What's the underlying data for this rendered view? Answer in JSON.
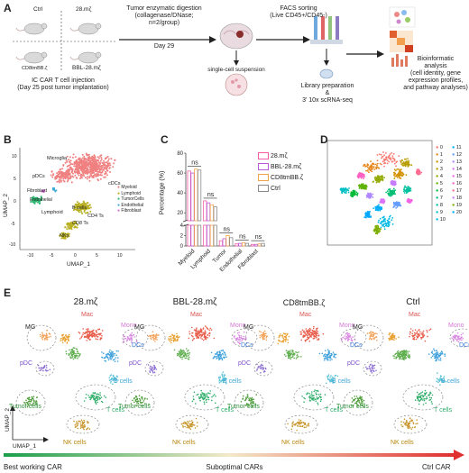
{
  "panelA": {
    "letter": "A",
    "groups": [
      "Ctrl",
      "28.mζ",
      "CD8tmBB.ζ",
      "BBL-28.mζ"
    ],
    "injection_line1": "IC CAR T cell injection",
    "injection_line2": "(Day 25 post tumor implantation)",
    "day_label": "Day 29",
    "digestion_line1": "Tumor enzymatic digestion",
    "digestion_line2": "(collagenase/DNase;",
    "digestion_line3": "n=2/group)",
    "suspension": "single-cell suspension",
    "facs_line1": "FACS sorting",
    "facs_line2": "(Live CD45+/CD45-)",
    "library_line1": "Library preparation",
    "library_line2": "&",
    "library_line3": "3' 10x scRNA-seq",
    "bioinf_line1": "Bioinformatic",
    "bioinf_line2": "analysis",
    "bioinf_line3": "(cell identity, gene",
    "bioinf_line4": "expression profiles,",
    "bioinf_line5": "and pathway analyses)"
  },
  "panelB": {
    "letter": "B",
    "ylabel": "UMAP_2",
    "xlabel": "UMAP_1",
    "xticks": [
      "-10",
      "-5",
      "0",
      "5",
      "10"
    ],
    "yticks": [
      "10",
      "5",
      "0",
      "-5",
      "-10"
    ],
    "labels": [
      "Microglia",
      "pDCs",
      "cDCs",
      "B cells",
      "Fibroblast",
      "Endothelial",
      "CD4 Ts",
      "Lymphoid",
      "CD8 Ts",
      "NKs"
    ],
    "legend": [
      {
        "name": "Myeloid",
        "color": "#f08080"
      },
      {
        "name": "Lymphoid",
        "color": "#b8b020"
      },
      {
        "name": "TumorCells",
        "color": "#2eb872"
      },
      {
        "name": "Endothelial",
        "color": "#3fa7d6"
      },
      {
        "name": "Fibroblast",
        "color": "#d966d6"
      }
    ]
  },
  "panelC": {
    "letter": "C",
    "chart_data": {
      "type": "bar",
      "ylabel": "Percentage (%)",
      "categories": [
        "Myeloid",
        "Lymphoid",
        "Tumor",
        "Endothelial",
        "Fibroblast"
      ],
      "yticks_upper": [
        "20",
        "40",
        "60",
        "80"
      ],
      "yticks_lower": [
        "0",
        "2",
        "4"
      ],
      "significance": [
        "ns",
        "ns",
        "ns",
        "ns",
        "ns"
      ],
      "series": [
        {
          "name": "28.mζ",
          "color": "#f35ea7",
          "values": [
            62,
            32,
            1.0,
            0.4,
            0.3
          ]
        },
        {
          "name": "BBL-28.mζ",
          "color": "#b65ad8",
          "values": [
            60,
            30,
            1.4,
            0.5,
            0.3
          ]
        },
        {
          "name": "CD8tmBB.ζ",
          "color": "#f2a24a",
          "values": [
            64,
            28,
            2.0,
            0.6,
            0.4
          ]
        },
        {
          "name": "Ctrl",
          "color": "#8a8a8a",
          "values": [
            63,
            26,
            1.6,
            0.5,
            0.5
          ]
        }
      ]
    }
  },
  "panelD": {
    "letter": "D",
    "clusters": [
      "0",
      "1",
      "2",
      "3",
      "4",
      "5",
      "6",
      "7",
      "8",
      "9",
      "10",
      "11",
      "12",
      "13",
      "14",
      "15",
      "16",
      "17",
      "18",
      "19",
      "20"
    ],
    "colors": [
      "#f8766d",
      "#e7861b",
      "#d39200",
      "#b79f00",
      "#93aa00",
      "#5eb300",
      "#00ba38",
      "#00bf74",
      "#00c19f",
      "#00bfc4",
      "#00b9e3",
      "#00adfa",
      "#619cff",
      "#ae87ff",
      "#db72fb",
      "#f564e3",
      "#ff61c3",
      "#ff6c91",
      "#c77cff",
      "#7cae00",
      "#00a9ff"
    ]
  },
  "panelE": {
    "letter": "E",
    "titles": [
      "28.mζ",
      "BBL-28.mζ",
      "CD8tmBB.ζ",
      "Ctrl"
    ],
    "labels": {
      "mg": "MG",
      "mac": "Mac",
      "mono": "Mono",
      "pdc": "pDC",
      "dcs": "DCs",
      "b": "B cells",
      "tumor": "Tumor cells",
      "t": "T cells",
      "nk": "NK cells"
    },
    "ylabel": "UMAP_2",
    "xlabel": "UMAP_1"
  },
  "gradient": {
    "left": "Best working CAR",
    "middle": "Suboptimal CARs",
    "right": "Ctrl CAR"
  }
}
